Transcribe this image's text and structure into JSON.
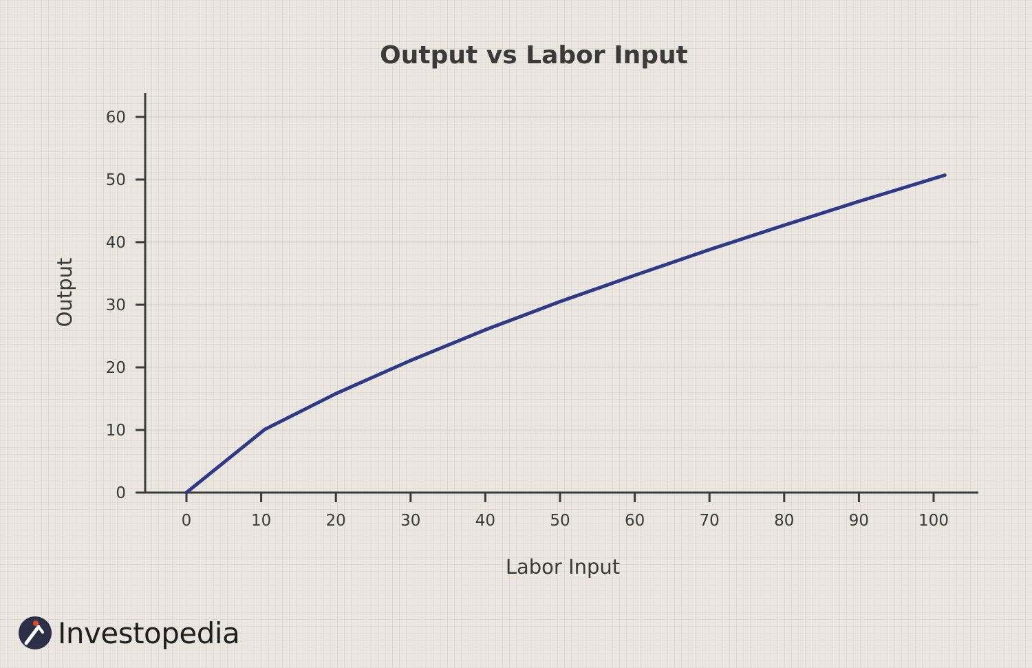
{
  "chart_data": {
    "type": "line",
    "title": "Output vs Labor Input",
    "xlabel": "Labor Input",
    "ylabel": "Output",
    "xlim": [
      -5.5,
      106
    ],
    "ylim": [
      0,
      64
    ],
    "xticks": [
      0,
      10,
      20,
      30,
      40,
      50,
      60,
      70,
      80,
      90,
      100
    ],
    "yticks": [
      0,
      10,
      20,
      30,
      40,
      50,
      60
    ],
    "grid": "horizontal",
    "series": [
      {
        "color": "#2e3a87",
        "x": [
          0,
          10.5,
          20,
          30,
          40,
          50,
          60,
          70,
          80,
          90,
          101.5
        ],
        "y": [
          0,
          10.1,
          15.8,
          21.1,
          26.0,
          30.5,
          34.7,
          38.8,
          42.7,
          46.5,
          50.7
        ]
      }
    ]
  },
  "colors": {
    "background": "#ebe6df",
    "axis": "#3a3a3a",
    "gridline": "#d8d2cb",
    "line": "#2e3a87",
    "brand_dot": "#e04a2f"
  },
  "brand": {
    "name": "Investopedia",
    "icon": "investopedia-logo-icon"
  }
}
